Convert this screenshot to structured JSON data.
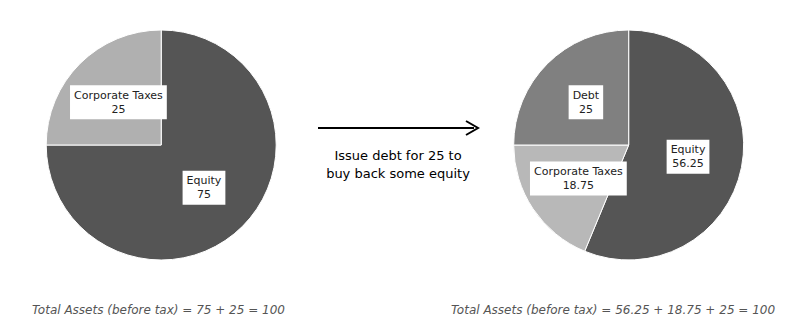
{
  "chart_data": [
    {
      "type": "pie",
      "categories": [
        "Equity",
        "Corporate Taxes"
      ],
      "values": [
        75,
        25
      ],
      "colors": [
        "#555555",
        "#b0b0b0"
      ],
      "data_labels": true,
      "annotations": [
        "Total Assets (before tax) = 75 + 25 = 100"
      ]
    },
    {
      "type": "pie",
      "categories": [
        "Equity",
        "Corporate Taxes",
        "Debt"
      ],
      "values": [
        56.25,
        18.75,
        25
      ],
      "colors": [
        "#555555",
        "#b8b8b8",
        "#808080"
      ],
      "data_labels": true,
      "annotations": [
        "Total Assets (before tax) = 56.25 + 18.75 + 25 = 100"
      ]
    }
  ],
  "annotations": [
    "Issue debt for 25 to\nbuy back some equity"
  ]
}
